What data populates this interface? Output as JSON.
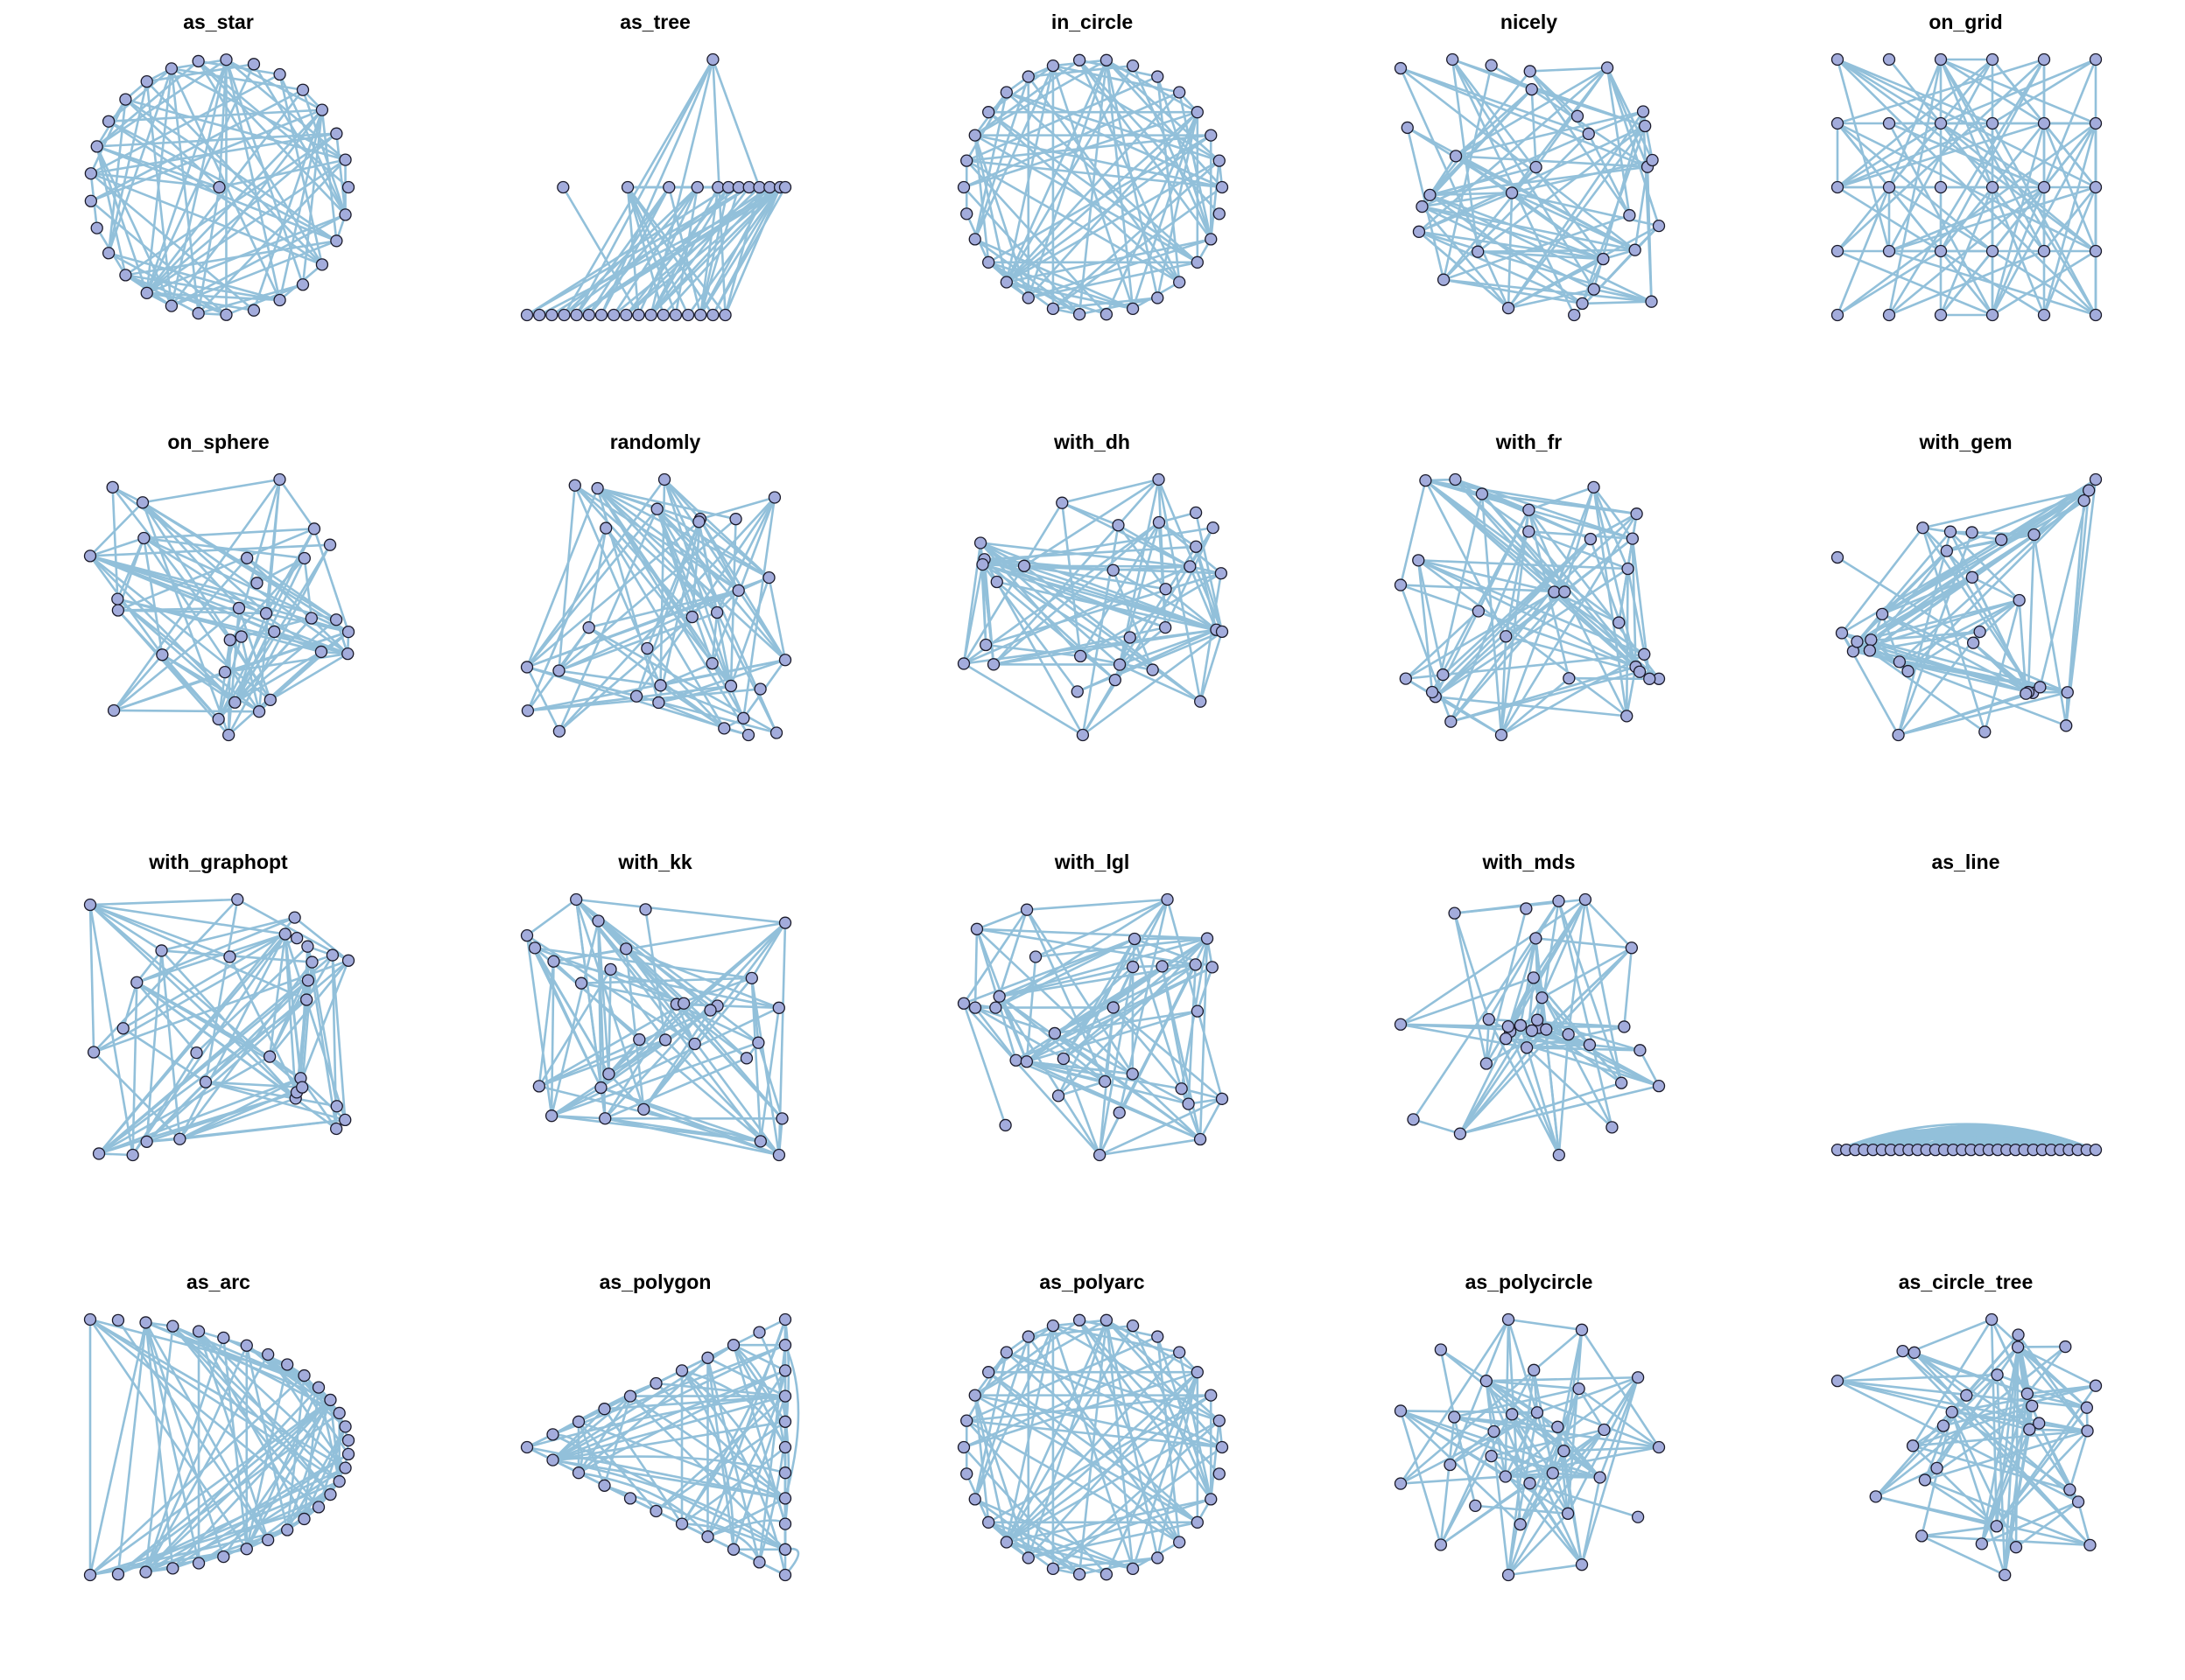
{
  "figure": {
    "edge_color": "#92c0da",
    "node_fill": "#a3acdc",
    "node_stroke": "#1a1a2a"
  },
  "panels": [
    {
      "title": "as_star",
      "layout": "star"
    },
    {
      "title": "as_tree",
      "layout": "tree"
    },
    {
      "title": "in_circle",
      "layout": "circle"
    },
    {
      "title": "nicely",
      "layout": "force"
    },
    {
      "title": "on_grid",
      "layout": "grid"
    },
    {
      "title": "on_sphere",
      "layout": "sphere"
    },
    {
      "title": "randomly",
      "layout": "random"
    },
    {
      "title": "with_dh",
      "layout": "force"
    },
    {
      "title": "with_fr",
      "layout": "force"
    },
    {
      "title": "with_gem",
      "layout": "force"
    },
    {
      "title": "with_graphopt",
      "layout": "force"
    },
    {
      "title": "with_kk",
      "layout": "force"
    },
    {
      "title": "with_lgl",
      "layout": "force"
    },
    {
      "title": "with_mds",
      "layout": "mds"
    },
    {
      "title": "as_line",
      "layout": "line"
    },
    {
      "title": "as_arc",
      "layout": "arc"
    },
    {
      "title": "as_polygon",
      "layout": "polygon"
    },
    {
      "title": "as_polyarc",
      "layout": "circle"
    },
    {
      "title": "as_polycircle",
      "layout": "polycircle"
    },
    {
      "title": "as_circle_tree",
      "layout": "circletree"
    }
  ]
}
